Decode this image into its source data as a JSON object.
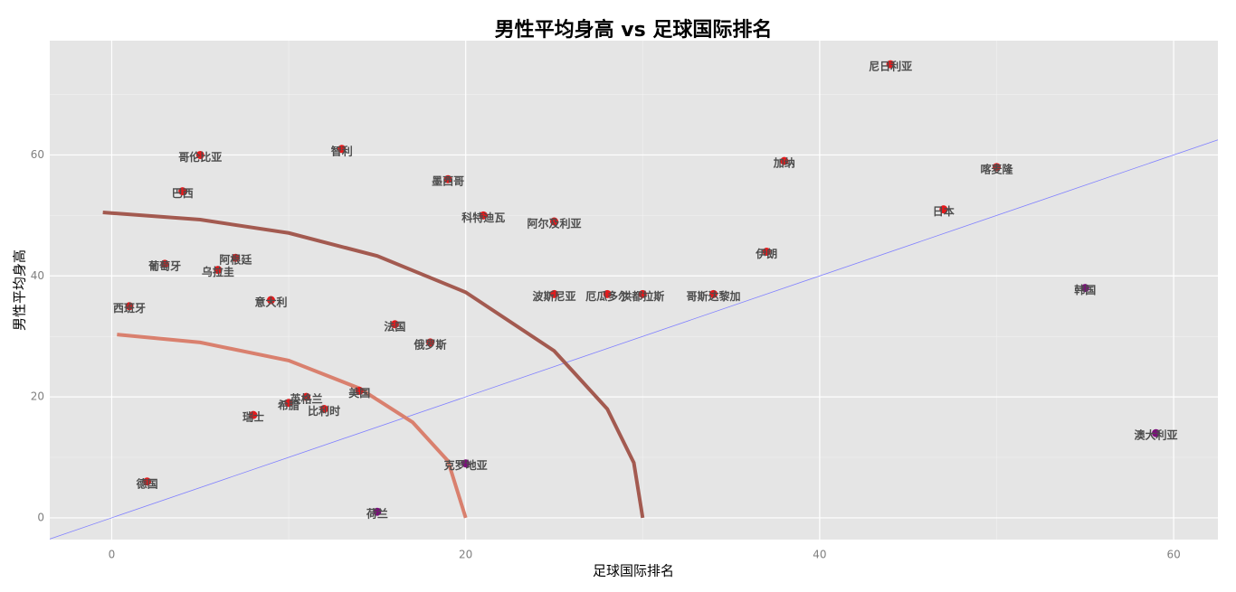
{
  "chart_data": {
    "type": "scatter",
    "title": "男性平均身高 vs 足球国际排名",
    "x_label": "足球国际排名",
    "y_label": "男性平均身高",
    "xlim": [
      -3.5,
      62.5
    ],
    "ylim": [
      -3.6,
      78.9
    ],
    "xticks": [
      0,
      20,
      40,
      60
    ],
    "yticks": [
      0,
      20,
      40,
      60
    ],
    "grid": true,
    "points": {
      "labels": [
        "德国",
        "西班牙",
        "葡萄牙",
        "巴西",
        "哥伦比亚",
        "阿根廷",
        "乌拉圭",
        "意大利",
        "瑞士",
        "希腊",
        "英格兰",
        "比利时",
        "美国",
        "智利",
        "荷兰",
        "法国",
        "俄罗斯",
        "墨西哥",
        "克罗地亚",
        "科特迪瓦",
        "阿尔及利亚",
        "波斯尼亚",
        "厄瓜多尔",
        "洪都拉斯",
        "哥斯达黎加",
        "伊朗",
        "加纳",
        "尼日利亚",
        "日本",
        "喀麦隆",
        "韩国",
        "澳大利亚"
      ],
      "x": [
        2,
        1,
        3,
        4,
        5,
        7,
        6,
        9,
        8,
        10,
        11,
        12,
        14,
        13,
        15,
        16,
        18,
        19,
        20,
        21,
        25,
        25,
        28,
        30,
        34,
        37,
        38,
        44,
        47,
        50,
        55,
        59
      ],
      "y": [
        6,
        35,
        42,
        54,
        60,
        43,
        41,
        36,
        17,
        19,
        20,
        18,
        21,
        61,
        1,
        32,
        29,
        56,
        9,
        50,
        49,
        37,
        37,
        37,
        37,
        44,
        59,
        75,
        51,
        58,
        38,
        14
      ],
      "colors": [
        "#e41a1c",
        "#e41a1c",
        "#e41a1c",
        "#e41a1c",
        "#e41a1c",
        "#e41a1c",
        "#e41a1c",
        "#e41a1c",
        "#e41a1c",
        "#e41a1c",
        "#e41a1c",
        "#e41a1c",
        "#e41a1c",
        "#e41a1c",
        "#7a0f7a",
        "#e41a1c",
        "#e41a1c",
        "#e41a1c",
        "#7a0f7a",
        "#e41a1c",
        "#e41a1c",
        "#e41a1c",
        "#e41a1c",
        "#e41a1c",
        "#e41a1c",
        "#e41a1c",
        "#e41a1c",
        "#e41a1c",
        "#e41a1c",
        "#e41a1c",
        "#7a0f7a",
        "#7a0f7a"
      ]
    },
    "curves": [
      {
        "color": "#a35a50",
        "x": [
          -0.5,
          5,
          10,
          15,
          20,
          25,
          28,
          29.5,
          30
        ],
        "y": [
          50.5,
          49.3,
          47.1,
          43.3,
          37.3,
          27.6,
          18,
          9.1,
          0
        ]
      },
      {
        "color": "#d9806e",
        "x": [
          0.3,
          5,
          10,
          14,
          17,
          19,
          20
        ],
        "y": [
          30.3,
          29,
          26,
          21.4,
          15.8,
          9.4,
          0
        ]
      }
    ],
    "abline": {
      "intercept": 0,
      "slope": 1,
      "color": "#8080ff"
    }
  }
}
